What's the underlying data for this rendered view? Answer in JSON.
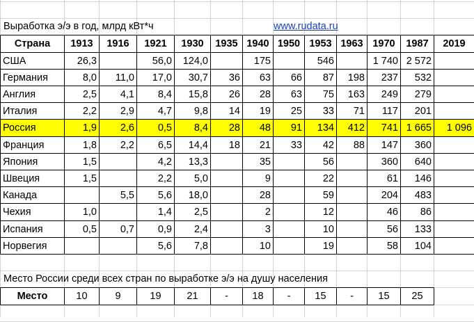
{
  "title": "Выработка э/э в год, млрд кВт*ч",
  "link": "www.rudata.ru",
  "table": {
    "header": [
      "Страна",
      "1913",
      "1916",
      "1921",
      "1930",
      "1935",
      "1940",
      "1950",
      "1953",
      "1963",
      "1970",
      "1987",
      "2019"
    ],
    "rows": [
      [
        "США",
        "26,3",
        null,
        "56,0",
        "124,0",
        null,
        "175",
        null,
        "546",
        null,
        "1 740",
        "2 572",
        null
      ],
      [
        "Германия",
        "8,0",
        "11,0",
        "17,0",
        "30,7",
        "36",
        "63",
        "66",
        "87",
        "198",
        "237",
        "532",
        null
      ],
      [
        "Англия",
        "2,5",
        "4,1",
        "8,4",
        "15,8",
        "26",
        "28",
        "63",
        "75",
        "163",
        "249",
        "279",
        null
      ],
      [
        "Италия",
        "2,2",
        "2,9",
        "4,7",
        "9,8",
        "14",
        "19",
        "25",
        "33",
        "71",
        "117",
        "201",
        null
      ],
      [
        "Россия",
        "1,9",
        "2,6",
        "0,5",
        "8,4",
        "28",
        "48",
        "91",
        "134",
        "412",
        "741",
        "1 665",
        "1 096"
      ],
      [
        "Франция",
        "1,8",
        "2,2",
        "6,5",
        "14,4",
        "18",
        "21",
        "33",
        "42",
        "88",
        "147",
        "360",
        null
      ],
      [
        "Япония",
        "1,5",
        null,
        "4,2",
        "13,3",
        null,
        "35",
        null,
        "56",
        null,
        "360",
        "640",
        null
      ],
      [
        "Швеция",
        "1,5",
        null,
        "2,2",
        "5,0",
        null,
        "9",
        null,
        "22",
        null,
        "61",
        "146",
        null
      ],
      [
        "Канада",
        null,
        "5,5",
        "5,6",
        "18,0",
        null,
        "28",
        null,
        "59",
        null,
        "204",
        "483",
        null
      ],
      [
        "Чехия",
        "1,0",
        null,
        "1,4",
        "2,5",
        null,
        "2",
        null,
        "12",
        null,
        "46",
        "86",
        null
      ],
      [
        "Испания",
        "0,5",
        "0,7",
        "0,9",
        "2,4",
        null,
        "3",
        null,
        "10",
        null,
        "56",
        "133",
        null
      ],
      [
        "Норвегия",
        null,
        null,
        "5,6",
        "7,8",
        null,
        "10",
        null,
        "19",
        null,
        "58",
        "104",
        null
      ]
    ],
    "highlight_row": 4,
    "highlight_color": "#ffff00"
  },
  "note": "Место России среди всех стран по выработке э/э на душу населения",
  "rank": {
    "label": "Место",
    "values": [
      "10",
      "9",
      "19",
      "21",
      "-",
      "18",
      "-",
      "15",
      "-",
      "15",
      "25"
    ]
  }
}
